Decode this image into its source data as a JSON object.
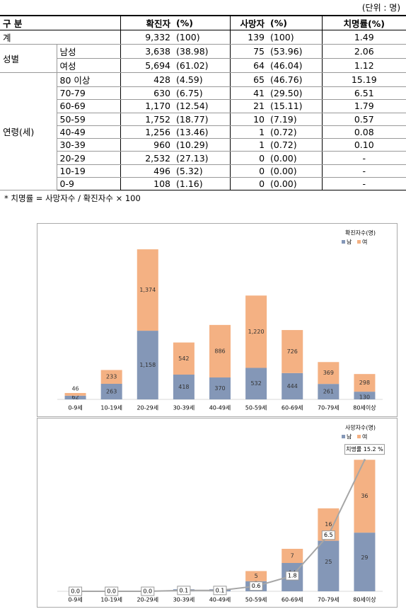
{
  "unit": "(단위 : 명)",
  "table": {
    "header": [
      "구 분",
      "확진자",
      "(%)",
      "사망자",
      "(%)",
      "치명률(%)"
    ],
    "total": {
      "label": "계",
      "cells": [
        "9,332",
        "(100)",
        "139",
        "(100)",
        "1.49"
      ]
    },
    "groups": [
      {
        "label": "성별",
        "rows": [
          {
            "label": "남성",
            "cells": [
              "3,638",
              "(38.98)",
              "75",
              "(53.96)",
              "2.06"
            ]
          },
          {
            "label": "여성",
            "cells": [
              "5,694",
              "(61.02)",
              "64",
              "(46.04)",
              "1.12"
            ]
          }
        ]
      },
      {
        "label": "연령(세)",
        "rows": [
          {
            "label": "80 이상",
            "cells": [
              "428",
              "(4.59)",
              "65",
              "(46.76)",
              "15.19"
            ]
          },
          {
            "label": "70-79",
            "cells": [
              "630",
              "(6.75)",
              "41",
              "(29.50)",
              "6.51"
            ]
          },
          {
            "label": "60-69",
            "cells": [
              "1,170",
              "(12.54)",
              "21",
              "(15.11)",
              "1.79"
            ]
          },
          {
            "label": "50-59",
            "cells": [
              "1,752",
              "(18.77)",
              "10",
              "(7.19)",
              "0.57"
            ]
          },
          {
            "label": "40-49",
            "cells": [
              "1,256",
              "(13.46)",
              "1",
              "(0.72)",
              "0.08"
            ]
          },
          {
            "label": "30-39",
            "cells": [
              "960",
              "(10.29)",
              "1",
              "(0.72)",
              "0.10"
            ]
          },
          {
            "label": "20-29",
            "cells": [
              "2,532",
              "(27.13)",
              "0",
              "(0.00)",
              "-"
            ]
          },
          {
            "label": "10-19",
            "cells": [
              "496",
              "(5.32)",
              "0",
              "(0.00)",
              "-"
            ]
          },
          {
            "label": "0-9",
            "cells": [
              "108",
              "(1.16)",
              "0",
              "(0.00)",
              "-"
            ]
          }
        ]
      }
    ]
  },
  "footnote": "*  치명률 = 사망자수 / 확진자수 × 100",
  "chart_data": [
    {
      "type": "bar",
      "stacked": true,
      "title": "확진자수(명)",
      "categories": [
        "0-9세",
        "10-19세",
        "20-29세",
        "30-39세",
        "40-49세",
        "50-59세",
        "60-69세",
        "70-79세",
        "80세이상"
      ],
      "ylim": [
        0,
        2700
      ],
      "series": [
        {
          "name": "남",
          "color": "#8497b7",
          "values": [
            62,
            263,
            1158,
            418,
            370,
            532,
            444,
            261,
            130
          ],
          "value_labels": [
            "62",
            "263",
            "1,158",
            "418",
            "370",
            "532",
            "444",
            "261",
            "130"
          ]
        },
        {
          "name": "여",
          "color": "#f4b183",
          "values": [
            46,
            233,
            1374,
            542,
            886,
            1220,
            726,
            369,
            298
          ],
          "value_labels": [
            "46",
            "233",
            "1,374",
            "542",
            "886",
            "1,220",
            "726",
            "369",
            "298"
          ]
        }
      ]
    },
    {
      "type": "bar",
      "stacked": true,
      "title": "사망자수(명)",
      "categories": [
        "0-9세",
        "10-19세",
        "20-29세",
        "30-39세",
        "40-49세",
        "50-59세",
        "60-69세",
        "70-79세",
        "80세이상"
      ],
      "ylim": [
        0,
        70
      ],
      "y2lim": [
        0,
        16.4
      ],
      "series": [
        {
          "name": "남",
          "color": "#8497b7",
          "values": [
            0,
            0,
            0,
            1,
            1,
            5,
            14,
            25,
            29
          ]
        },
        {
          "name": "여",
          "color": "#f4b183",
          "values": [
            0,
            0,
            0,
            0,
            0,
            5,
            7,
            16,
            36
          ]
        }
      ],
      "line": {
        "color": "#a6a6a6",
        "axis": "y2",
        "values": [
          0.0,
          0.0,
          0.0,
          0.1,
          0.1,
          0.6,
          1.8,
          6.5,
          15.2
        ],
        "value_labels": [
          "0.0",
          "0.0",
          "0.0",
          "0.1",
          "0.1",
          "0.6",
          "1.8",
          "6.5",
          "15.2"
        ]
      },
      "annotation": "치명률 15.2 %"
    }
  ]
}
